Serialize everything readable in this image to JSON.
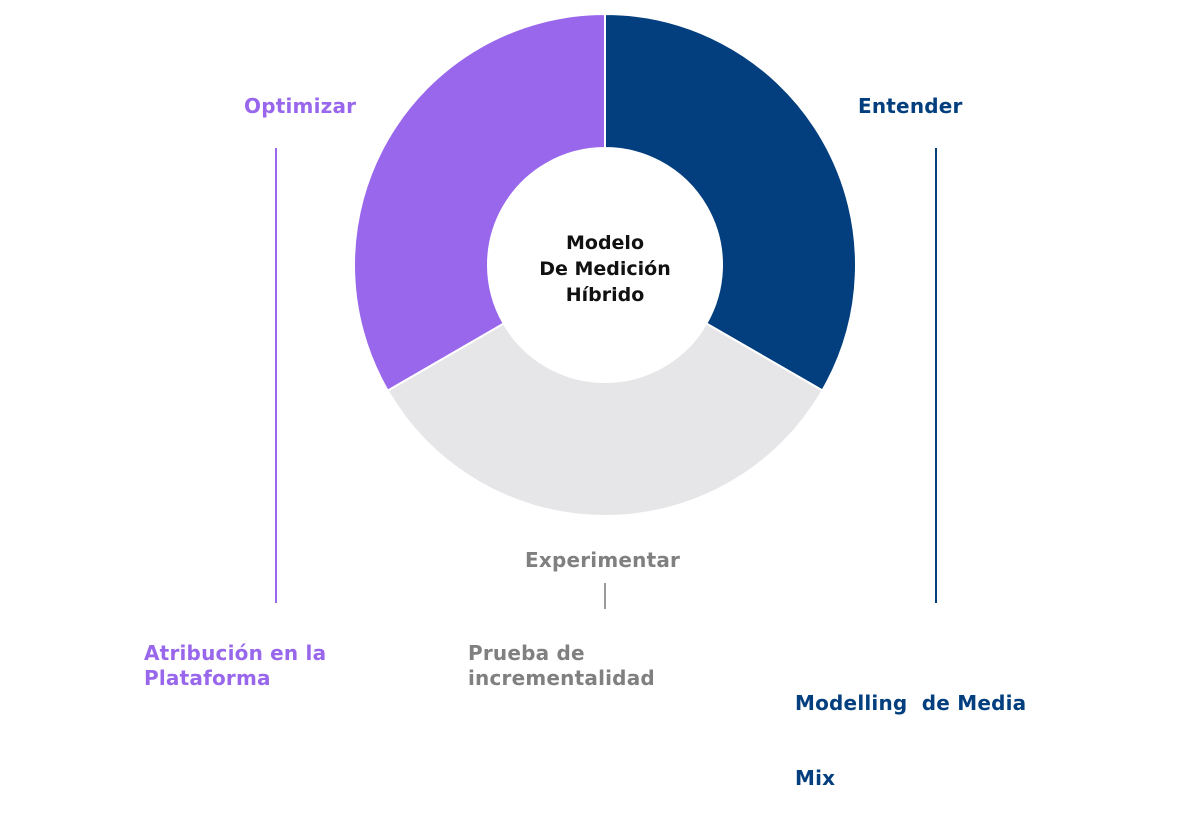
{
  "center": {
    "line1": "Modelo",
    "line2": "De Medición",
    "line3": "Híbrido"
  },
  "segments": [
    {
      "id": "entender",
      "title": "Entender",
      "color": "#033f7e",
      "share": 0.3333
    },
    {
      "id": "experimentar",
      "title": "Experimentar",
      "color": "#e6e6e9",
      "title_color": "#808080",
      "share": 0.3333
    },
    {
      "id": "optimizar",
      "title": "Optimizar",
      "color": "#9867ec",
      "share": 0.3334
    }
  ],
  "methods": {
    "optimizar": {
      "line1": "Atribución en la",
      "line2": "Plataforma",
      "color": "#9867ec"
    },
    "experimentar": {
      "line1": "Prueba de",
      "line2": "incrementalidad",
      "color": "#808080"
    },
    "entender": {
      "line1": "Modelling  de Media",
      "line2": "Mix",
      "color": "#033f7e"
    }
  }
}
